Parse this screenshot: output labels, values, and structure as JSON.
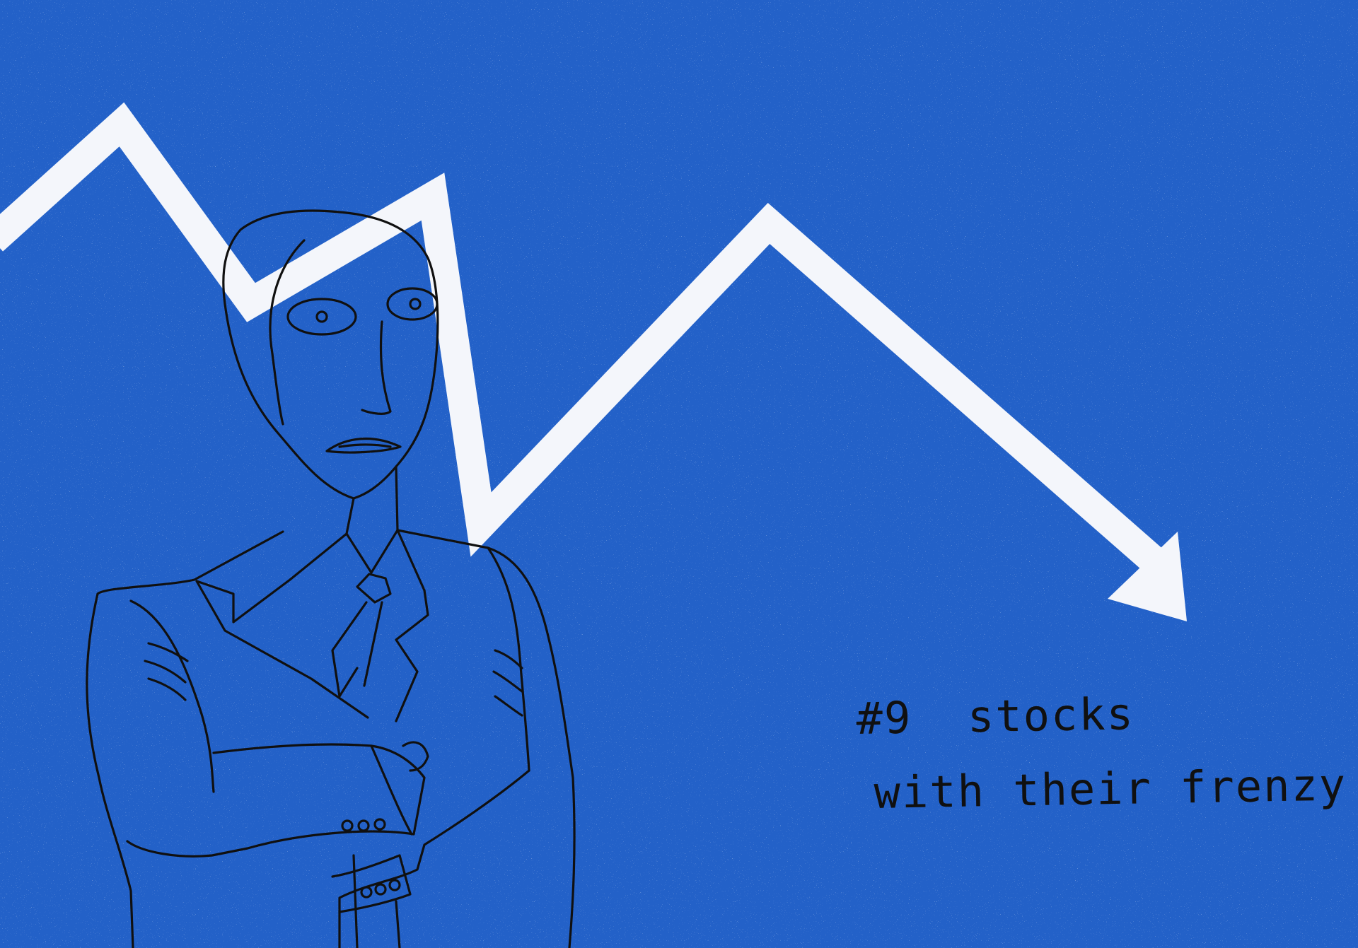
{
  "illustration": {
    "background_color": "#2361c8",
    "arrow_color": "#f4f6fb",
    "ink_color": "#101010",
    "caption": {
      "line_1": "#9  stocks",
      "line_2": "with their frenzy"
    }
  }
}
